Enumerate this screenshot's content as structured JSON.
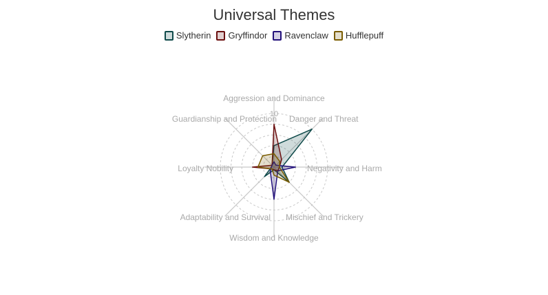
{
  "chart_data": {
    "type": "radar",
    "title": "Universal Themes",
    "axes": [
      "Aggression and Dominance",
      "Danger and Threat",
      "Negativity and Harm",
      "Mischief and Trickery",
      "Wisdom and Knowledge",
      "Adaptability and Survival",
      "Loyalty Nobility",
      "Guardianship and Protection"
    ],
    "rlim": [
      0,
      10
    ],
    "rticks": [
      2,
      4,
      6,
      8,
      10
    ],
    "tick_label_shown": "10",
    "grid": true,
    "legend_position": "top",
    "series": [
      {
        "name": "Slytherin",
        "color": "#0f4a4a",
        "values": [
          4.0,
          10.0,
          1.5,
          4.0,
          0.5,
          2.5,
          0.5,
          0.5
        ]
      },
      {
        "name": "Gryffindor",
        "color": "#6b0f0f",
        "values": [
          8.0,
          2.0,
          1.0,
          1.0,
          0.5,
          0.5,
          4.0,
          0.5
        ]
      },
      {
        "name": "Ravenclaw",
        "color": "#22107a",
        "values": [
          1.0,
          0.5,
          4.0,
          1.0,
          6.0,
          1.0,
          0.5,
          0.5
        ]
      },
      {
        "name": "Hufflepuff",
        "color": "#7a5c00",
        "values": [
          2.5,
          1.5,
          1.0,
          4.0,
          1.5,
          0.5,
          3.0,
          3.0
        ]
      }
    ]
  }
}
